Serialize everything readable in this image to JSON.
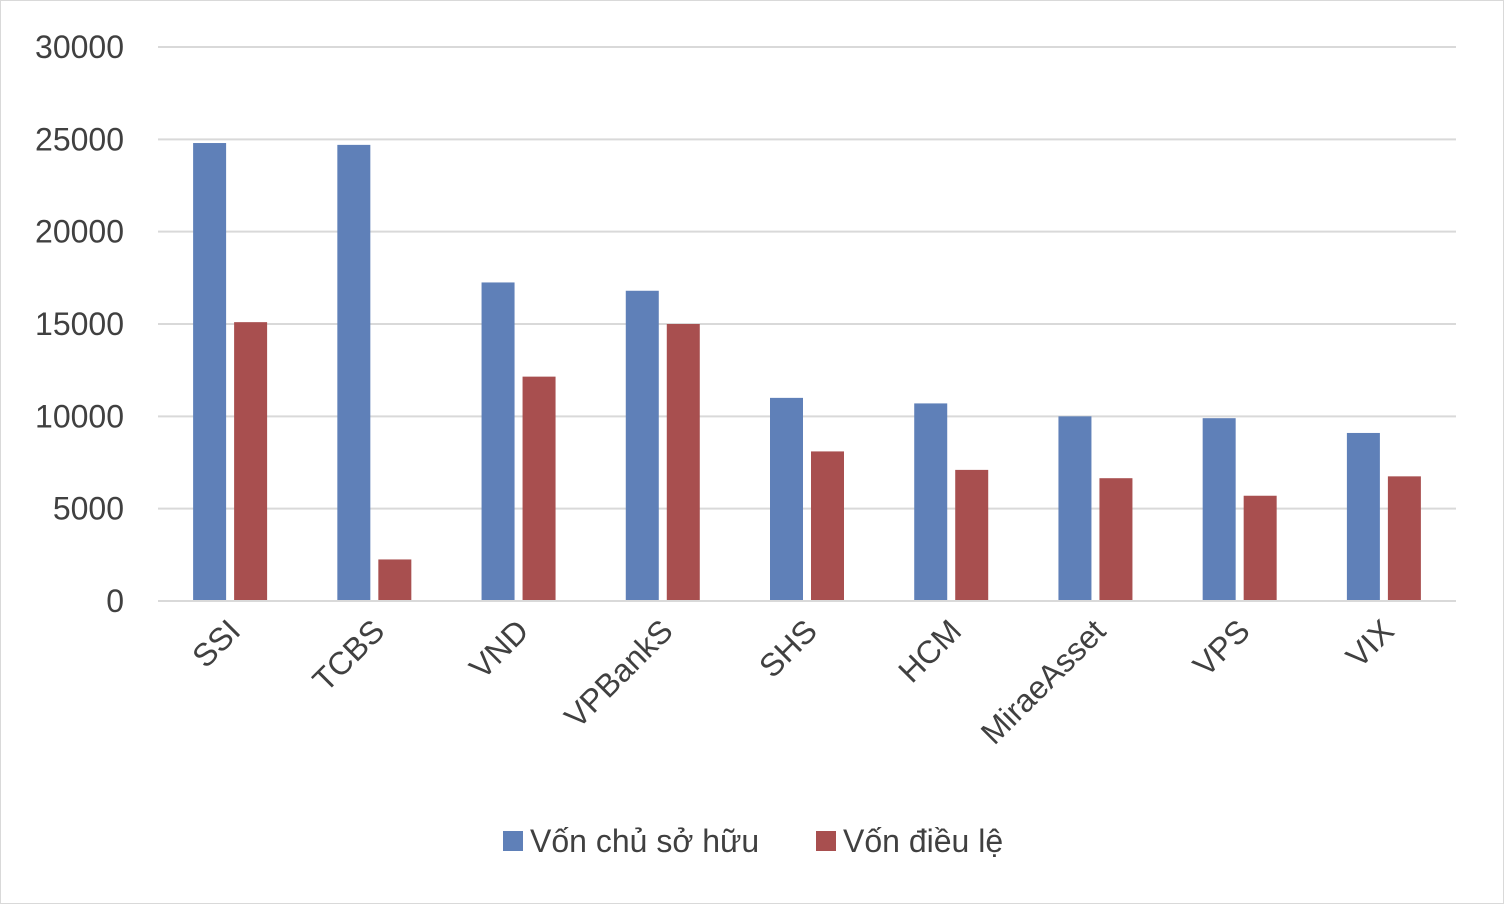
{
  "chart_data": {
    "type": "bar",
    "title": "",
    "xlabel": "",
    "ylabel": "",
    "categories": [
      "SSI",
      "TCBS",
      "VND",
      "VPBankS",
      "SHS",
      "HCM",
      "MiraeAsset",
      "VPS",
      "VIX"
    ],
    "series": [
      {
        "name": "Vốn chủ sở hữu",
        "color": "#5f80b8",
        "values": [
          24800,
          24700,
          17250,
          16800,
          11000,
          10700,
          10000,
          9900,
          9100
        ]
      },
      {
        "name": "Vốn điều lệ",
        "color": "#a84f4f",
        "values": [
          15100,
          2250,
          12150,
          15000,
          8100,
          7100,
          6650,
          5700,
          6750
        ]
      }
    ],
    "ylim": [
      0,
      30000
    ],
    "yticks": [
      "0",
      "5000",
      "10000",
      "15000",
      "20000",
      "25000",
      "30000"
    ],
    "grid": true,
    "legend_position": "bottom"
  }
}
